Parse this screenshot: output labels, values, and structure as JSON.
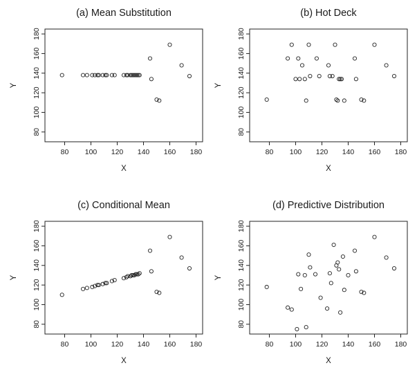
{
  "chart_data": [
    {
      "type": "scatter",
      "title": "(a) Mean Substitution",
      "xlabel": "X",
      "ylabel": "Y",
      "xlim": [
        65,
        185
      ],
      "ylim": [
        70,
        185
      ],
      "xticks": [
        80,
        100,
        120,
        140,
        160,
        180
      ],
      "yticks": [
        80,
        100,
        120,
        140,
        160,
        180
      ],
      "points": [
        [
          78,
          138
        ],
        [
          94,
          138
        ],
        [
          97,
          138
        ],
        [
          101,
          138
        ],
        [
          103,
          138
        ],
        [
          105,
          138
        ],
        [
          106,
          138
        ],
        [
          109,
          138
        ],
        [
          111,
          138
        ],
        [
          112,
          138
        ],
        [
          116,
          138
        ],
        [
          118,
          138
        ],
        [
          125,
          138
        ],
        [
          127,
          138
        ],
        [
          128,
          138
        ],
        [
          130,
          138
        ],
        [
          131,
          138
        ],
        [
          132,
          138
        ],
        [
          133,
          138
        ],
        [
          134,
          138
        ],
        [
          135,
          138
        ],
        [
          136,
          138
        ],
        [
          137,
          138
        ],
        [
          145,
          155
        ],
        [
          146,
          134
        ],
        [
          150,
          113
        ],
        [
          152,
          112
        ],
        [
          160,
          169
        ],
        [
          169,
          148
        ],
        [
          175,
          137
        ]
      ]
    },
    {
      "type": "scatter",
      "title": "(b) Hot Deck",
      "xlabel": "X",
      "ylabel": "Y",
      "xlim": [
        65,
        185
      ],
      "ylim": [
        70,
        185
      ],
      "xticks": [
        80,
        100,
        120,
        140,
        160,
        180
      ],
      "yticks": [
        80,
        100,
        120,
        140,
        160,
        180
      ],
      "points": [
        [
          78,
          113
        ],
        [
          94,
          155
        ],
        [
          97,
          169
        ],
        [
          100,
          134
        ],
        [
          102,
          155
        ],
        [
          103,
          134
        ],
        [
          105,
          148
        ],
        [
          107,
          134
        ],
        [
          108,
          112
        ],
        [
          110,
          169
        ],
        [
          111,
          137
        ],
        [
          116,
          155
        ],
        [
          118,
          137
        ],
        [
          125,
          148
        ],
        [
          126,
          137
        ],
        [
          128,
          137
        ],
        [
          130,
          169
        ],
        [
          131,
          113
        ],
        [
          132,
          112
        ],
        [
          133,
          134
        ],
        [
          134,
          134
        ],
        [
          135,
          134
        ],
        [
          137,
          112
        ],
        [
          145,
          155
        ],
        [
          146,
          134
        ],
        [
          150,
          113
        ],
        [
          152,
          112
        ],
        [
          160,
          169
        ],
        [
          169,
          148
        ],
        [
          175,
          137
        ]
      ]
    },
    {
      "type": "scatter",
      "title": "(c) Conditional Mean",
      "xlabel": "X",
      "ylabel": "Y",
      "xlim": [
        65,
        185
      ],
      "ylim": [
        70,
        185
      ],
      "xticks": [
        80,
        100,
        120,
        140,
        160,
        180
      ],
      "yticks": [
        80,
        100,
        120,
        140,
        160,
        180
      ],
      "points": [
        [
          78,
          110
        ],
        [
          94,
          116
        ],
        [
          97,
          117
        ],
        [
          101,
          118
        ],
        [
          103,
          119
        ],
        [
          105,
          120
        ],
        [
          106,
          120
        ],
        [
          109,
          121
        ],
        [
          111,
          122
        ],
        [
          112,
          122
        ],
        [
          116,
          124
        ],
        [
          118,
          125
        ],
        [
          125,
          127
        ],
        [
          127,
          128
        ],
        [
          128,
          129
        ],
        [
          130,
          129
        ],
        [
          131,
          130
        ],
        [
          132,
          130
        ],
        [
          133,
          130
        ],
        [
          134,
          131
        ],
        [
          135,
          131
        ],
        [
          136,
          131
        ],
        [
          137,
          132
        ],
        [
          145,
          155
        ],
        [
          146,
          134
        ],
        [
          150,
          113
        ],
        [
          152,
          112
        ],
        [
          160,
          169
        ],
        [
          169,
          148
        ],
        [
          175,
          137
        ]
      ]
    },
    {
      "type": "scatter",
      "title": "(d) Predictive Distribution",
      "xlabel": "X",
      "ylabel": "Y",
      "xlim": [
        65,
        185
      ],
      "ylim": [
        70,
        185
      ],
      "xticks": [
        80,
        100,
        120,
        140,
        160,
        180
      ],
      "yticks": [
        80,
        100,
        120,
        140,
        160,
        180
      ],
      "points": [
        [
          78,
          118
        ],
        [
          94,
          97
        ],
        [
          97,
          95
        ],
        [
          101,
          75
        ],
        [
          102,
          131
        ],
        [
          104,
          116
        ],
        [
          107,
          130
        ],
        [
          108,
          77
        ],
        [
          110,
          151
        ],
        [
          111,
          138
        ],
        [
          115,
          131
        ],
        [
          119,
          107
        ],
        [
          124,
          96
        ],
        [
          126,
          132
        ],
        [
          127,
          122
        ],
        [
          129,
          161
        ],
        [
          131,
          140
        ],
        [
          132,
          143
        ],
        [
          133,
          136
        ],
        [
          134,
          92
        ],
        [
          136,
          149
        ],
        [
          137,
          115
        ],
        [
          140,
          130
        ],
        [
          145,
          155
        ],
        [
          146,
          134
        ],
        [
          150,
          113
        ],
        [
          152,
          112
        ],
        [
          160,
          169
        ],
        [
          169,
          148
        ],
        [
          175,
          137
        ]
      ]
    }
  ]
}
